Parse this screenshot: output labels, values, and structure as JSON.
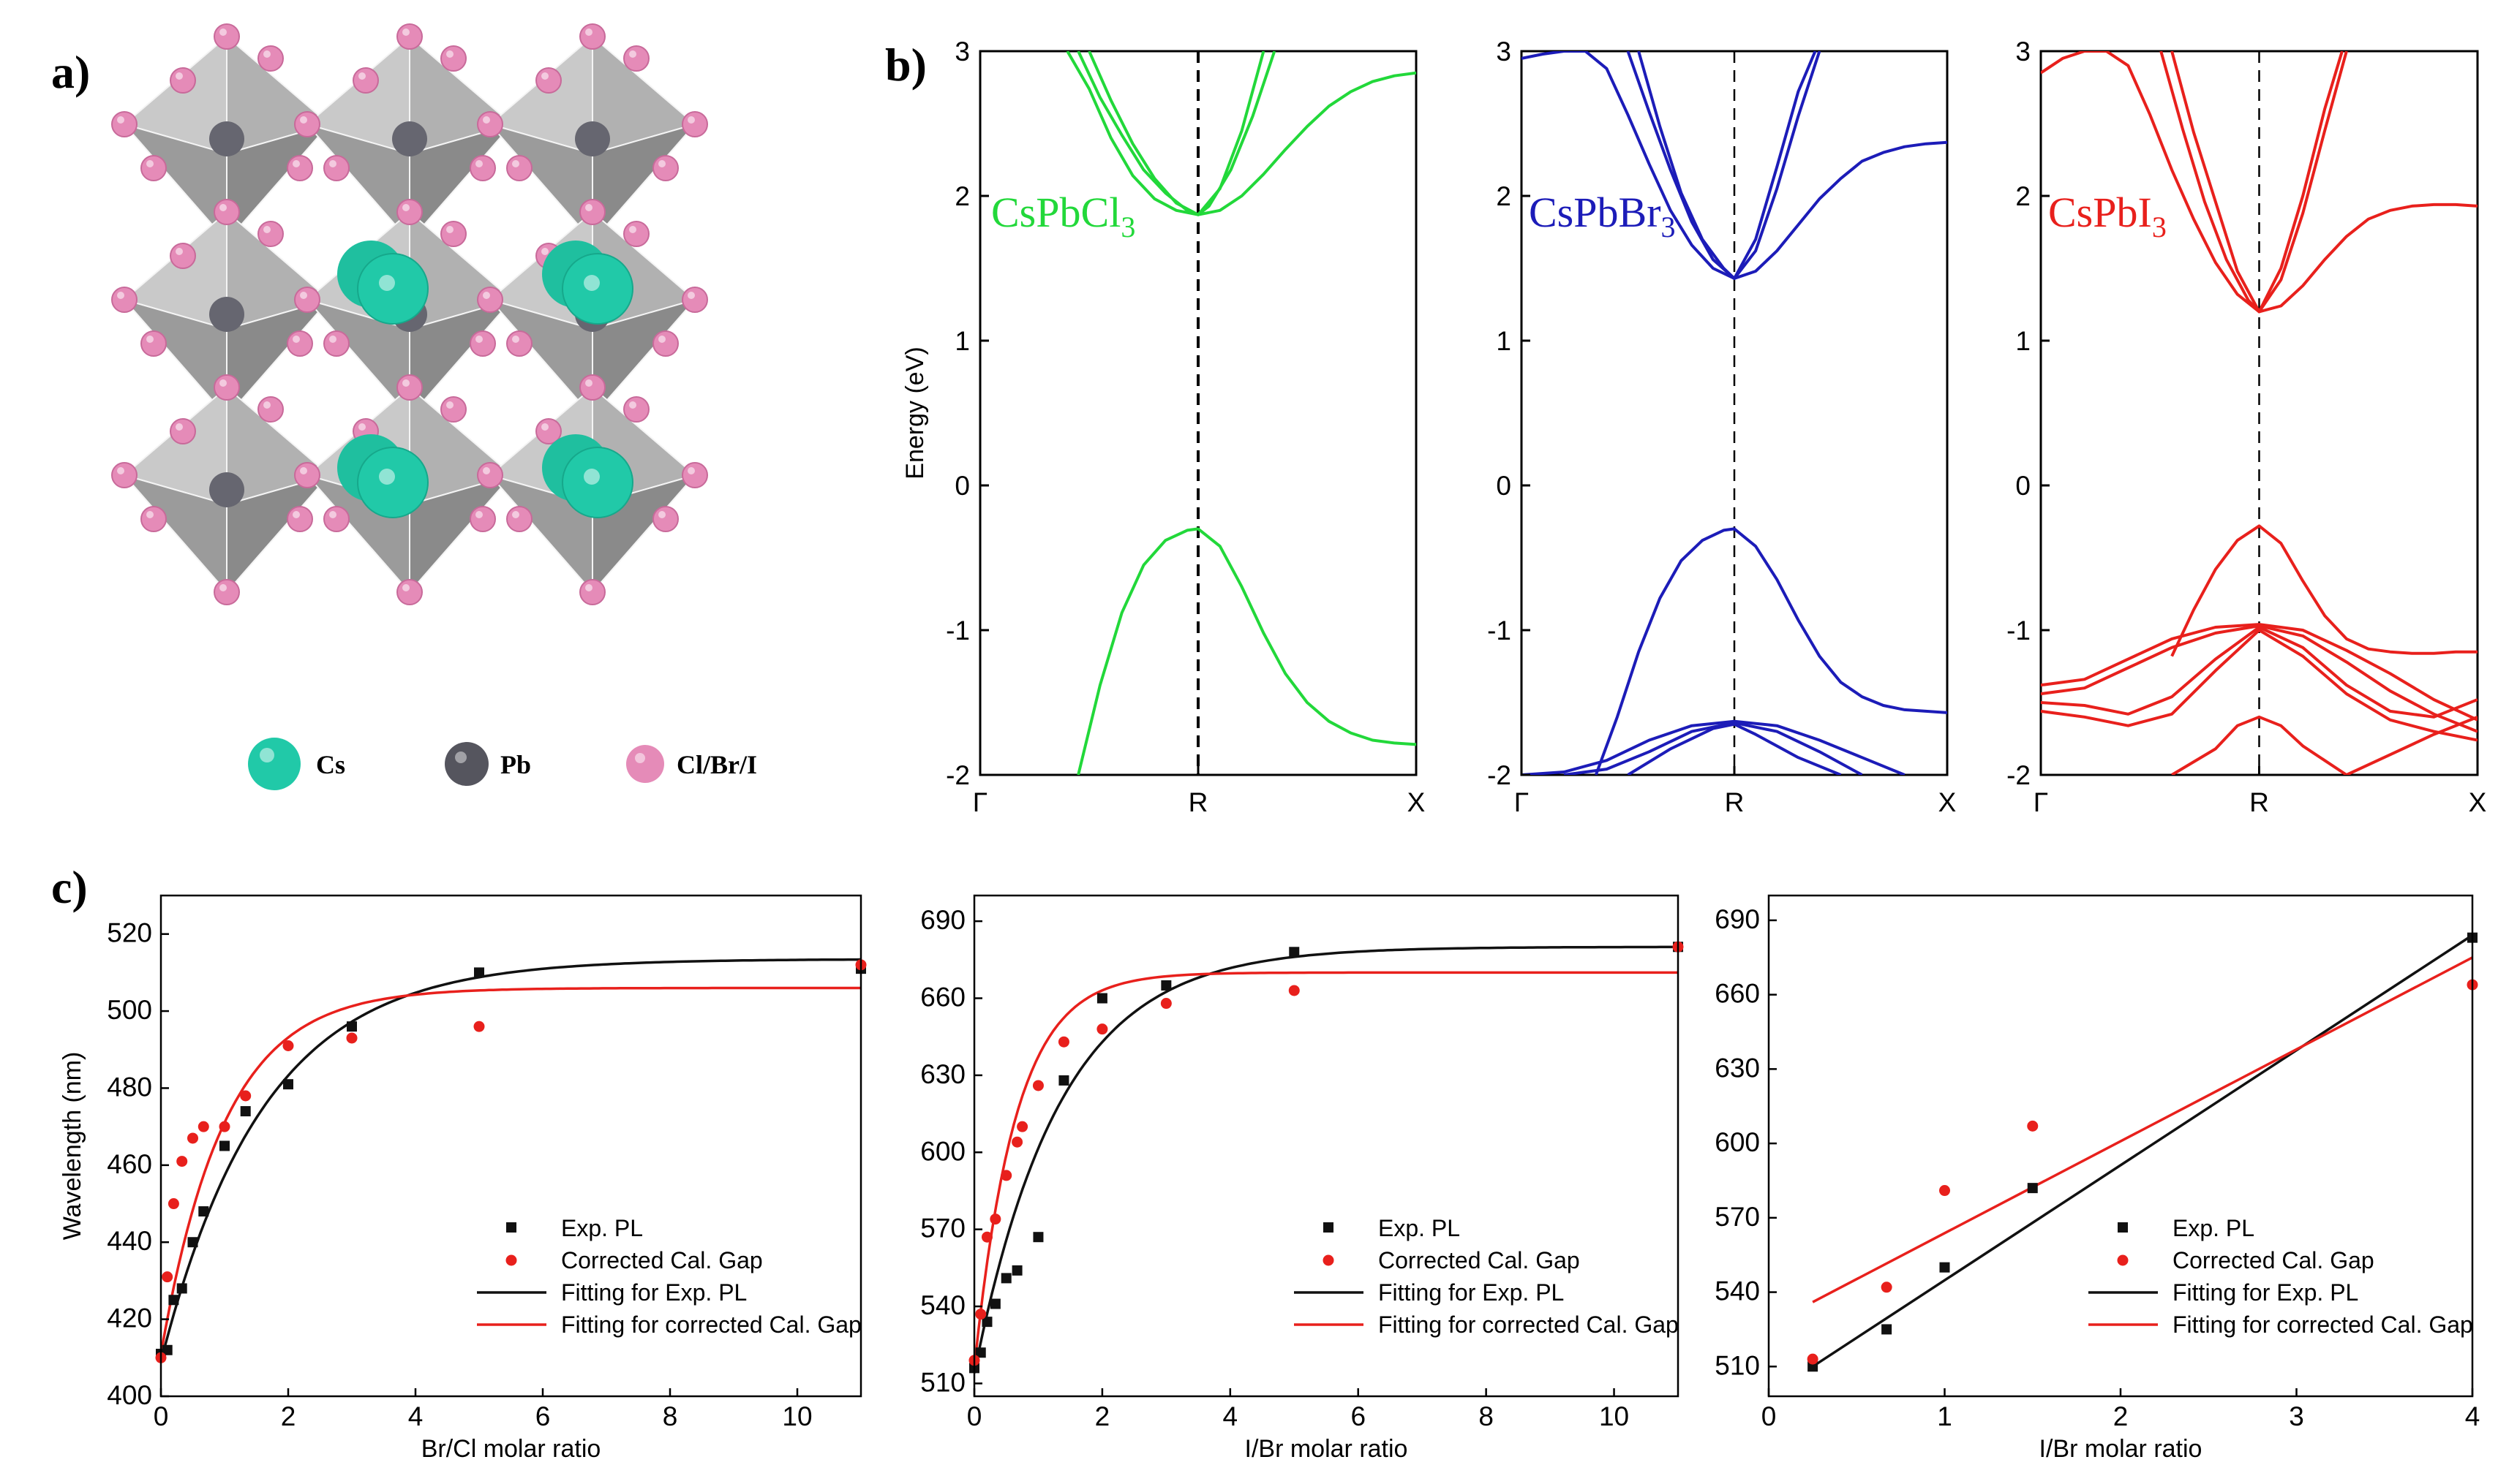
{
  "panel_labels": {
    "a": "a)",
    "b": "b)",
    "c": "c)"
  },
  "structure": {
    "legend": [
      {
        "label": "Cs",
        "color": "#21c9a8"
      },
      {
        "label": "Pb",
        "color": "#55555e"
      },
      {
        "label": "Cl/Br/I",
        "color": "#e58bb8"
      }
    ]
  },
  "chart_data": [
    {
      "type": "line",
      "id": "band-cl",
      "title": "CsPbCl",
      "title_sub": "3",
      "color": "#22d83a",
      "xticks": [
        "Γ",
        "R",
        "X"
      ],
      "ylabel": "Energy (eV)",
      "ylim": [
        -2,
        3
      ],
      "yticks": [
        "-2",
        "-1",
        "0",
        "1",
        "2",
        "3"
      ],
      "bands": [
        {
          "name": "CB1",
          "x": [
            0.4,
            0.5,
            0.6,
            0.7,
            0.8,
            0.9,
            1.0,
            1.1,
            1.2,
            1.3,
            1.4,
            1.5,
            1.6,
            1.7,
            1.8,
            1.9,
            2.0
          ],
          "y": [
            3.0,
            2.74,
            2.4,
            2.14,
            1.98,
            1.9,
            1.87,
            1.9,
            2.0,
            2.15,
            2.32,
            2.48,
            2.62,
            2.72,
            2.79,
            2.83,
            2.85
          ]
        },
        {
          "name": "CB2",
          "x": [
            0.45,
            0.55,
            0.65,
            0.75,
            0.85,
            0.95,
            1.0,
            1.05,
            1.15,
            1.25,
            1.35
          ],
          "y": [
            3.0,
            2.68,
            2.42,
            2.18,
            2.02,
            1.9,
            1.87,
            1.93,
            2.18,
            2.55,
            3.0
          ]
        },
        {
          "name": "CB3",
          "x": [
            0.5,
            0.6,
            0.7,
            0.8,
            0.9,
            1.0,
            1.1,
            1.2,
            1.3
          ],
          "y": [
            3.0,
            2.66,
            2.36,
            2.12,
            1.95,
            1.87,
            2.05,
            2.45,
            3.0
          ]
        },
        {
          "name": "VB1",
          "x": [
            0.45,
            0.55,
            0.65,
            0.75,
            0.85,
            0.95,
            1.0,
            1.1,
            1.2,
            1.3,
            1.4,
            1.5,
            1.6,
            1.7,
            1.8,
            1.9,
            2.0
          ],
          "y": [
            -2.0,
            -1.38,
            -0.88,
            -0.55,
            -0.38,
            -0.31,
            -0.3,
            -0.42,
            -0.7,
            -1.02,
            -1.3,
            -1.5,
            -1.63,
            -1.71,
            -1.76,
            -1.78,
            -1.79
          ]
        }
      ]
    },
    {
      "type": "line",
      "id": "band-br",
      "title": "CsPbBr",
      "title_sub": "3",
      "color": "#1c1cb8",
      "xticks": [
        "Γ",
        "R",
        "X"
      ],
      "ylim": [
        -2,
        3
      ],
      "yticks": [
        "-2",
        "-1",
        "0",
        "1",
        "2",
        "3"
      ],
      "bands": [
        {
          "name": "CB1",
          "x": [
            0.0,
            0.1,
            0.2,
            0.3,
            0.4,
            0.5,
            0.6,
            0.7,
            0.8,
            0.9,
            1.0,
            1.1,
            1.2,
            1.3,
            1.4,
            1.5,
            1.6,
            1.7,
            1.8,
            1.9,
            2.0
          ],
          "y": [
            2.95,
            2.98,
            3.0,
            3.0,
            2.88,
            2.56,
            2.22,
            1.9,
            1.66,
            1.5,
            1.43,
            1.48,
            1.62,
            1.8,
            1.98,
            2.12,
            2.24,
            2.3,
            2.34,
            2.36,
            2.37
          ]
        },
        {
          "name": "CB2",
          "x": [
            0.5,
            0.6,
            0.7,
            0.8,
            0.9,
            1.0,
            1.1,
            1.2,
            1.3,
            1.4
          ],
          "y": [
            3.0,
            2.58,
            2.18,
            1.82,
            1.56,
            1.43,
            1.62,
            2.05,
            2.55,
            3.0
          ]
        },
        {
          "name": "CB3",
          "x": [
            0.55,
            0.65,
            0.75,
            0.85,
            0.95,
            1.0,
            1.1,
            1.2,
            1.3,
            1.38
          ],
          "y": [
            3.0,
            2.48,
            2.02,
            1.7,
            1.5,
            1.43,
            1.7,
            2.2,
            2.72,
            3.0
          ]
        },
        {
          "name": "VB1",
          "x": [
            0.35,
            0.45,
            0.55,
            0.65,
            0.75,
            0.85,
            0.95,
            1.0,
            1.1,
            1.2,
            1.3,
            1.4,
            1.5,
            1.6,
            1.7,
            1.8,
            1.9,
            2.0
          ],
          "y": [
            -2.0,
            -1.6,
            -1.15,
            -0.78,
            -0.52,
            -0.38,
            -0.31,
            -0.3,
            -0.42,
            -0.65,
            -0.93,
            -1.18,
            -1.36,
            -1.46,
            -1.52,
            -1.55,
            -1.56,
            -1.57
          ]
        },
        {
          "name": "VB2",
          "x": [
            0.0,
            0.2,
            0.4,
            0.6,
            0.8,
            1.0,
            1.2,
            1.4,
            1.6,
            1.8
          ],
          "y": [
            -2.0,
            -1.98,
            -1.9,
            -1.76,
            -1.66,
            -1.63,
            -1.66,
            -1.76,
            -1.88,
            -2.0
          ]
        },
        {
          "name": "VB3",
          "x": [
            0.2,
            0.4,
            0.6,
            0.8,
            1.0,
            1.2,
            1.4,
            1.6
          ],
          "y": [
            -2.0,
            -1.96,
            -1.84,
            -1.7,
            -1.64,
            -1.7,
            -1.84,
            -2.0
          ]
        },
        {
          "name": "VB4",
          "x": [
            0.5,
            0.7,
            0.9,
            1.0,
            1.1,
            1.3,
            1.5
          ],
          "y": [
            -2.0,
            -1.82,
            -1.68,
            -1.65,
            -1.72,
            -1.88,
            -2.0
          ]
        }
      ]
    },
    {
      "type": "line",
      "id": "band-i",
      "title": "CsPbI",
      "title_sub": "3",
      "color": "#e8201c",
      "xticks": [
        "Γ",
        "R",
        "X"
      ],
      "ylim": [
        -2,
        3
      ],
      "yticks": [
        "-2",
        "-1",
        "0",
        "1",
        "2",
        "3"
      ],
      "bands": [
        {
          "name": "CB1",
          "x": [
            0.0,
            0.1,
            0.2,
            0.3,
            0.4,
            0.5,
            0.6,
            0.7,
            0.8,
            0.9,
            1.0,
            1.1,
            1.2,
            1.3,
            1.4,
            1.5,
            1.6,
            1.7,
            1.8,
            1.9,
            2.0
          ],
          "y": [
            2.85,
            2.95,
            3.0,
            3.0,
            2.9,
            2.56,
            2.18,
            1.84,
            1.54,
            1.32,
            1.2,
            1.24,
            1.38,
            1.56,
            1.72,
            1.84,
            1.9,
            1.93,
            1.94,
            1.94,
            1.93
          ]
        },
        {
          "name": "CB2",
          "x": [
            0.55,
            0.65,
            0.75,
            0.85,
            0.95,
            1.0,
            1.1,
            1.2,
            1.3,
            1.38
          ],
          "y": [
            3.0,
            2.46,
            1.96,
            1.56,
            1.28,
            1.2,
            1.5,
            2.0,
            2.6,
            3.0
          ]
        },
        {
          "name": "CB3",
          "x": [
            0.6,
            0.7,
            0.8,
            0.9,
            1.0,
            1.1,
            1.2,
            1.3,
            1.4
          ],
          "y": [
            3.0,
            2.44,
            1.96,
            1.48,
            1.2,
            1.42,
            1.88,
            2.45,
            3.0
          ]
        },
        {
          "name": "VB1",
          "x": [
            0.6,
            0.7,
            0.8,
            0.9,
            1.0,
            1.1,
            1.2,
            1.3,
            1.4,
            1.5,
            1.6,
            1.7,
            1.8,
            1.9,
            2.0
          ],
          "y": [
            -1.18,
            -0.86,
            -0.58,
            -0.38,
            -0.28,
            -0.4,
            -0.66,
            -0.9,
            -1.06,
            -1.13,
            -1.15,
            -1.16,
            -1.16,
            -1.15,
            -1.15
          ]
        },
        {
          "name": "VB2",
          "x": [
            0.0,
            0.2,
            0.4,
            0.6,
            0.8,
            1.0,
            1.2,
            1.4,
            1.6,
            1.8,
            2.0
          ],
          "y": [
            -1.38,
            -1.34,
            -1.2,
            -1.06,
            -0.98,
            -0.96,
            -1.0,
            -1.14,
            -1.3,
            -1.48,
            -1.62
          ]
        },
        {
          "name": "VB3",
          "x": [
            0.0,
            0.2,
            0.4,
            0.6,
            0.8,
            1.0,
            1.2,
            1.4,
            1.6,
            1.8,
            2.0
          ],
          "y": [
            -1.44,
            -1.4,
            -1.26,
            -1.12,
            -1.02,
            -0.97,
            -1.04,
            -1.22,
            -1.42,
            -1.58,
            -1.7
          ]
        },
        {
          "name": "VB4",
          "x": [
            0.0,
            0.2,
            0.4,
            0.6,
            0.8,
            1.0,
            1.2,
            1.4,
            1.6,
            1.8,
            2.0
          ],
          "y": [
            -1.5,
            -1.52,
            -1.58,
            -1.46,
            -1.2,
            -0.98,
            -1.12,
            -1.38,
            -1.56,
            -1.6,
            -1.48
          ]
        },
        {
          "name": "VB5",
          "x": [
            0.0,
            0.2,
            0.4,
            0.6,
            0.8,
            1.0,
            1.2,
            1.4,
            1.6,
            1.8,
            2.0
          ],
          "y": [
            -1.56,
            -1.6,
            -1.66,
            -1.58,
            -1.28,
            -1.0,
            -1.18,
            -1.44,
            -1.62,
            -1.7,
            -1.76
          ]
        },
        {
          "name": "VB6",
          "x": [
            0.6,
            0.8,
            0.9,
            1.0,
            1.1,
            1.2,
            1.4
          ],
          "y": [
            -2.0,
            -1.82,
            -1.66,
            -1.6,
            -1.66,
            -1.8,
            -2.0
          ]
        },
        {
          "name": "VB7",
          "x": [
            1.4,
            1.6,
            1.8,
            2.0
          ],
          "y": [
            -2.0,
            -1.86,
            -1.72,
            -1.6
          ]
        }
      ]
    },
    {
      "type": "scatter",
      "id": "pl-brcl",
      "xlabel": "Br/Cl molar ratio",
      "ylabel": "Wavelength (nm)",
      "xlim": [
        0,
        11
      ],
      "ylim": [
        400,
        530
      ],
      "xticks": [
        0,
        2,
        4,
        6,
        8,
        10
      ],
      "yticks": [
        400,
        420,
        440,
        460,
        480,
        500,
        520
      ],
      "series": [
        {
          "name": "Exp. PL",
          "color": "#111111",
          "marker": "square",
          "x": [
            0.0,
            0.1,
            0.2,
            0.33,
            0.5,
            0.67,
            1.0,
            1.33,
            2.0,
            3.0,
            5.0,
            11.0
          ],
          "y": [
            411,
            412,
            425,
            428,
            440,
            448,
            465,
            474,
            481,
            496,
            510,
            511
          ]
        },
        {
          "name": "Corrected Cal. Gap",
          "color": "#e8201c",
          "marker": "circle",
          "x": [
            0.0,
            0.1,
            0.2,
            0.33,
            0.5,
            0.67,
            1.0,
            1.33,
            2.0,
            3.0,
            5.0,
            11.0
          ],
          "y": [
            410,
            431,
            450,
            461,
            467,
            470,
            470,
            478,
            491,
            493,
            496,
            512
          ]
        }
      ],
      "fits": [
        {
          "name": "Fitting for Exp. PL",
          "color": "#111111",
          "model": "exp",
          "y0": 409,
          "ymax": 513.5,
          "k": 0.62
        },
        {
          "name": "Fitting for corrected Cal. Gap",
          "color": "#e8201c",
          "model": "exp",
          "y0": 411,
          "ymax": 506,
          "k": 1.0
        }
      ]
    },
    {
      "type": "scatter",
      "id": "pl-ibr1",
      "xlabel": "I/Br molar ratio",
      "xlim": [
        0,
        11
      ],
      "ylim": [
        505,
        700
      ],
      "xticks": [
        0,
        2,
        4,
        6,
        8,
        10
      ],
      "yticks": [
        510,
        540,
        570,
        600,
        630,
        660,
        690
      ],
      "series": [
        {
          "name": "Exp. PL",
          "color": "#111111",
          "marker": "square",
          "x": [
            0.0,
            0.1,
            0.2,
            0.33,
            0.5,
            0.67,
            1.0,
            1.4,
            2.0,
            3.0,
            5.0,
            11.0
          ],
          "y": [
            516,
            522,
            534,
            541,
            551,
            554,
            567,
            628,
            660,
            665,
            678,
            680
          ]
        },
        {
          "name": "Corrected Cal. Gap",
          "color": "#e8201c",
          "marker": "circle",
          "x": [
            0.0,
            0.1,
            0.2,
            0.33,
            0.5,
            0.67,
            0.75,
            1.0,
            1.4,
            2.0,
            3.0,
            5.0,
            11.0
          ],
          "y": [
            519,
            537,
            567,
            574,
            591,
            604,
            610,
            626,
            643,
            648,
            658,
            663,
            680
          ]
        }
      ],
      "fits": [
        {
          "name": "Fitting for Exp. PL",
          "color": "#111111",
          "model": "exp",
          "y0": 514,
          "ymax": 680,
          "k": 0.75
        },
        {
          "name": "Fitting for corrected Cal. Gap",
          "color": "#e8201c",
          "model": "exp",
          "y0": 516,
          "ymax": 670,
          "k": 1.55
        }
      ]
    },
    {
      "type": "scatter",
      "id": "pl-ibr2",
      "xlabel": "I/Br molar ratio",
      "xlim": [
        0,
        4
      ],
      "ylim": [
        498,
        700
      ],
      "xticks": [
        0,
        1,
        2,
        3,
        4
      ],
      "yticks": [
        510,
        540,
        570,
        600,
        630,
        660,
        690
      ],
      "series": [
        {
          "name": "Exp. PL",
          "color": "#111111",
          "marker": "square",
          "x": [
            0.25,
            0.67,
            1.0,
            1.5,
            4.0
          ],
          "y": [
            510,
            525,
            550,
            582,
            683
          ]
        },
        {
          "name": "Corrected Cal. Gap",
          "color": "#e8201c",
          "marker": "circle",
          "x": [
            0.25,
            0.67,
            1.0,
            1.5,
            4.0
          ],
          "y": [
            513,
            542,
            581,
            607,
            664
          ]
        }
      ],
      "fits": [
        {
          "name": "Fitting for Exp. PL",
          "color": "#111111",
          "model": "linear",
          "x0": 0.25,
          "x1": 4.0,
          "ya": 510,
          "yb": 684
        },
        {
          "name": "Fitting for corrected Cal. Gap",
          "color": "#e8201c",
          "model": "linear",
          "x0": 0.25,
          "x1": 4.0,
          "ya": 536,
          "yb": 675
        }
      ]
    }
  ]
}
